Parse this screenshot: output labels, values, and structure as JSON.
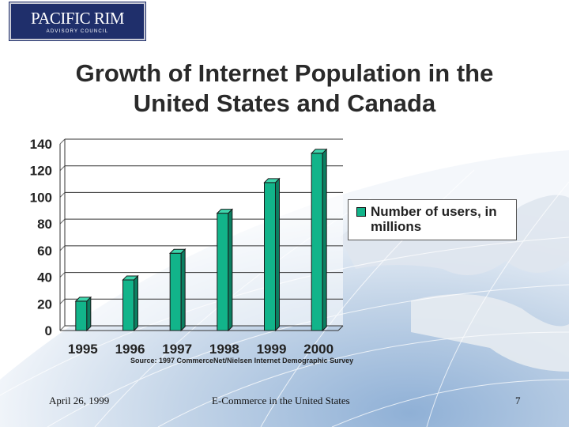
{
  "logo": {
    "name": "PACIFIC RIM",
    "subtitle": "ADVISORY COUNCIL"
  },
  "title_line1": "Growth of Internet Population in the",
  "title_line2": "United States and Canada",
  "chart_data": {
    "type": "bar",
    "categories": [
      "1995",
      "1996",
      "1997",
      "1998",
      "1999",
      "2000"
    ],
    "series": [
      {
        "name": "Number of users, in millions",
        "values": [
          22,
          38,
          58,
          88,
          111,
          133
        ]
      }
    ],
    "title": "Growth of Internet Population in the United States and Canada",
    "xlabel": "",
    "ylabel": "",
    "ylim": [
      0,
      140
    ],
    "yticks": [
      0,
      20,
      40,
      60,
      80,
      100,
      120,
      140
    ],
    "grid": true,
    "legend_position": "right",
    "source": "Source: 1997 CommerceNet/Nielsen Internet Demographic Survey",
    "bar_color": "#12b48a"
  },
  "footer": {
    "date": "April 26, 1999",
    "title": "E-Commerce in the United States",
    "page": "7"
  },
  "colors": {
    "logo_bg": "#1f2f6b",
    "bar": "#12b48a",
    "globe": "#a9c1dc"
  }
}
